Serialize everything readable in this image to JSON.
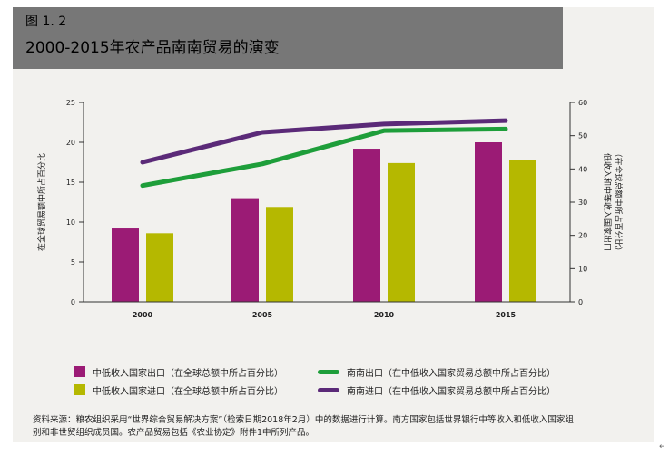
{
  "figure": {
    "label": "图 1. 2",
    "title": "2000-2015年农产品南南贸易的演变",
    "source": "资料来源：粮农组织采用“世界综合贸易解决方案”（检索日期2018年2月）中的数据进行计算。南方国家包括世界银行中等收入和低收入国家组别和非世贸组织成员国。农产品贸易包括《农业协定》附件1中所列产品。",
    "corner_mark": "↵"
  },
  "colors": {
    "export_bar": "#9b1b75",
    "import_bar": "#b5b800",
    "ss_export_line": "#1e9e3a",
    "ss_import_line": "#5b2a78",
    "header_bg": "#777777",
    "panel_bg": "#f2f1ee"
  },
  "legend": {
    "export_bar": "中低收入国家出口（在全球总额中所占百分比）",
    "import_bar": "中低收入国家进口（在全球总额中所占百分比）",
    "ss_export_line": "南南出口（在中低收入国家贸易总额中所占百分比）",
    "ss_import_line": "南南进口（在中低收入国家贸易总额中所占百分比）"
  },
  "chart_data": {
    "type": "bar",
    "categories": [
      "2000",
      "2005",
      "2010",
      "2015"
    ],
    "ylabel": "在全球贸易额中所占百分比",
    "y2label": [
      "低收入和中等收入国家出口",
      "（在全球总额中所占百分比）"
    ],
    "ylim": [
      0,
      25
    ],
    "yticks": [
      0,
      5,
      10,
      15,
      20,
      25
    ],
    "y2lim": [
      0,
      60
    ],
    "y2ticks": [
      0,
      10,
      20,
      30,
      40,
      50,
      60
    ],
    "series": [
      {
        "name": "中低收入国家出口（在全球总额中所占百分比）",
        "kind": "bar",
        "axis": "left",
        "values": [
          9.2,
          13.0,
          19.2,
          20.0
        ]
      },
      {
        "name": "中低收入国家进口（在全球总额中所占百分比）",
        "kind": "bar",
        "axis": "left",
        "values": [
          8.6,
          11.9,
          17.4,
          17.8
        ]
      },
      {
        "name": "南南出口（在中低收入国家贸易总额中所占百分比）",
        "kind": "line",
        "axis": "right",
        "values": [
          35,
          41.5,
          51.5,
          52
        ]
      },
      {
        "name": "南南进口（在中低收入国家贸易总额中所占百分比）",
        "kind": "line",
        "axis": "right",
        "values": [
          42,
          51,
          53.5,
          54.5
        ]
      }
    ]
  }
}
